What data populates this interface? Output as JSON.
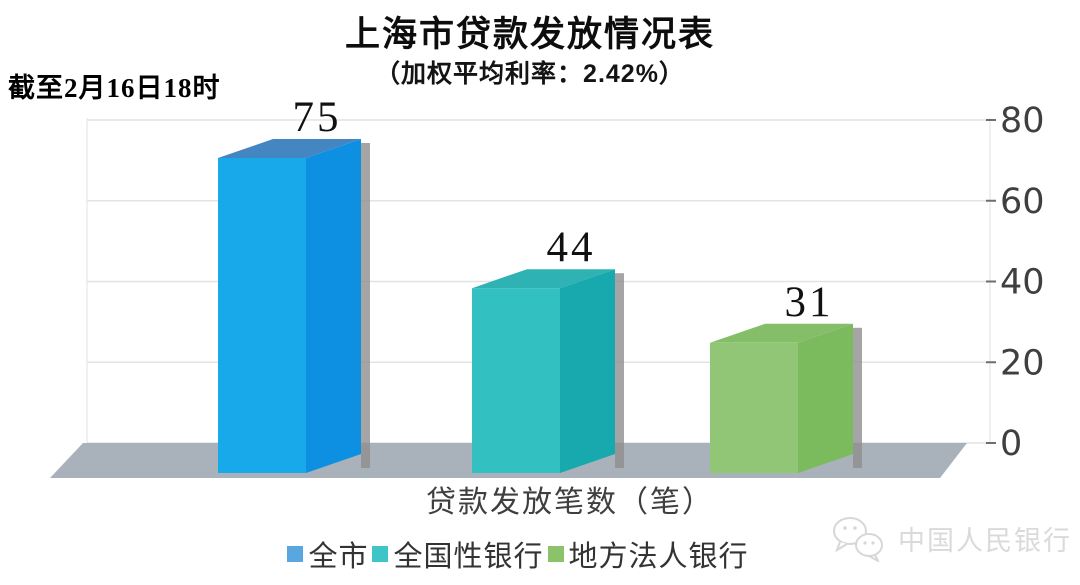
{
  "title": "上海市贷款发放情况表",
  "subtitle": "（加权平均利率：2.42%）",
  "date_note": "截至2月16日18时",
  "x_axis_label": "贷款发放笔数（笔）",
  "watermark": {
    "source_label": "中国人民银行"
  },
  "chart_data": {
    "type": "bar",
    "style": "3d-column",
    "title": "上海市贷款发放情况表",
    "subtitle": "（加权平均利率：2.42%）",
    "note": "截至2月16日18时",
    "categories": [
      "全市",
      "全国性银行",
      "地方法人银行"
    ],
    "values": [
      75,
      44,
      31
    ],
    "value_labels": [
      "75",
      "44",
      "31"
    ],
    "xlabel": "贷款发放笔数（笔）",
    "ylabel": "",
    "ylim": [
      0,
      80
    ],
    "y_ticks": [
      0,
      20,
      40,
      60,
      80
    ],
    "grid": true,
    "legend_position": "bottom",
    "legend": [
      {
        "label": "全市",
        "color": "#58A7DE"
      },
      {
        "label": "全国性银行",
        "color": "#3FC4C7"
      },
      {
        "label": "地方法人银行",
        "color": "#8CC269"
      }
    ],
    "bar_faces": [
      {
        "front": "#18A9EA",
        "side": "#0D8FE2",
        "top": "#4486C2"
      },
      {
        "front": "#33C0C1",
        "side": "#17A9AE",
        "top": "#2EB2B4"
      },
      {
        "front": "#91C677",
        "side": "#7CBA5E",
        "top": "#85BE69"
      }
    ],
    "colors": {
      "gridline": "#E3E3E3",
      "wall_line": "#E8E8E8",
      "floor": "#A9B1BB",
      "shadow": "#8F8F8F",
      "tick": "#6E6E6E",
      "axis_text": "#3F3F3F",
      "value_label_text": "#111111"
    }
  }
}
